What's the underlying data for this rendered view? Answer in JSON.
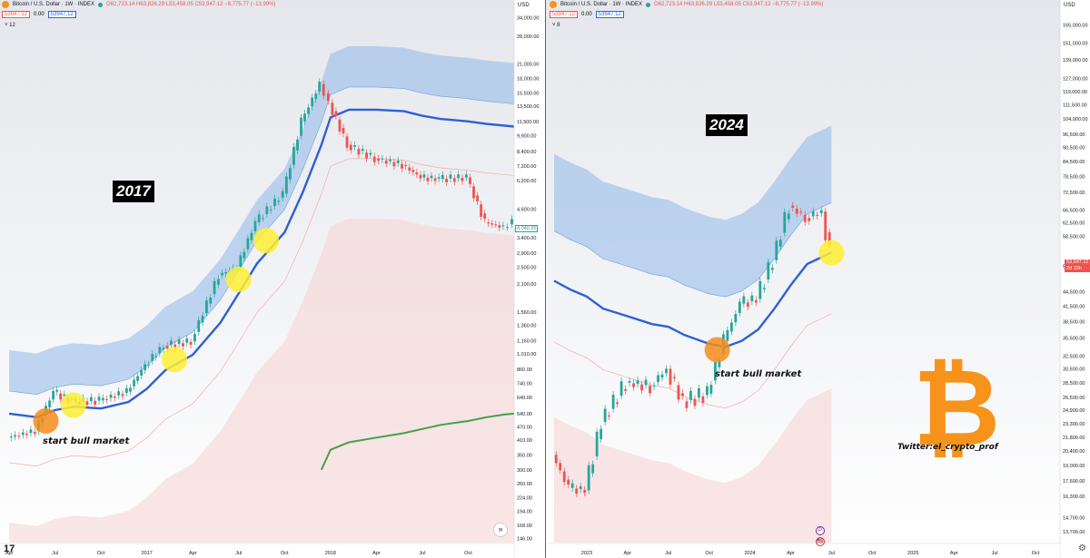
{
  "symbol_header": {
    "name": "Bitcoin / U.S. Dollar · 1W · INDEX",
    "ohlc": "O62,723.14 H63,826.29 L53,458.05 C53,947.12 −8,775.77 (−13.99%)",
    "ohlc_right": "O62,723.14 H63,826.29 L53,458.05 C53,947.12 −8,775.77 (−13.99%)",
    "sell": "53947.12",
    "spread": "0.00",
    "buy": "53947.12",
    "indicator_left": "12",
    "indicator_right": "8",
    "currency": "USD"
  },
  "labels": {
    "year_left": "2017",
    "year_right": "2024",
    "bull_left": "start bull market",
    "bull_right": "start bull market",
    "twitter": "Twitter:el_crypto_prof",
    "bitcoin_symbol": "₿",
    "last_price": "53,947.12",
    "countdown": "2d 15h",
    "prev_price_left": "4,040.95",
    "tv_logo": "17",
    "scroll_button": "»",
    "gear": "⚙",
    "badge_p": "P",
    "flag": "🇺🇸"
  },
  "colors": {
    "accent_blue": "#2962ff",
    "up_candle": "#26a69a",
    "down_candle": "#ef5350",
    "band_fill": "#90b8ea",
    "highlight_yellow": "#ffee33",
    "highlight_orange": "#f78c1a",
    "ma_green": "#43a047"
  },
  "chart_data": [
    {
      "type": "line",
      "title": "Bitcoin / U.S. Dollar · 1W · INDEX",
      "scale": "log",
      "x_ticks": [
        "Apr",
        "Jul",
        "Oct",
        "2017",
        "Apr",
        "Jul",
        "Oct",
        "2018",
        "Apr",
        "Jul",
        "Oct"
      ],
      "y_ticks": [
        "34,000.00",
        "28,000.00",
        "21,000.00",
        "18,000.00",
        "15,500.00",
        "13,500.00",
        "11,500.00",
        "9,900.00",
        "8,400.00",
        "7,200.00",
        "6,200.00",
        "4,600.00",
        "3,400.00",
        "2,900.00",
        "2,500.00",
        "2,100.00",
        "1,560.00",
        "1,360.00",
        "1,160.00",
        "1,010.00",
        "860.00",
        "740.00",
        "640.00",
        "540.00",
        "470.00",
        "410.00",
        "350.00",
        "300.00",
        "260.00",
        "224.00",
        "194.00",
        "168.00",
        "146.00"
      ],
      "ylim": [
        140,
        38000
      ],
      "price_x": [
        2016.25,
        2016.4,
        2016.5,
        2016.6,
        2016.75,
        2016.9,
        2017.0,
        2017.1,
        2017.25,
        2017.4,
        2017.5,
        2017.6,
        2017.75,
        2017.85,
        2017.95,
        2018.0,
        2018.1,
        2018.25,
        2018.4,
        2018.5,
        2018.6,
        2018.75,
        2018.85,
        2018.95,
        2019.0
      ],
      "price_y": [
        420,
        450,
        680,
        610,
        620,
        680,
        900,
        1100,
        1150,
        2300,
        2500,
        4000,
        5400,
        11500,
        17000,
        14000,
        9000,
        7800,
        7300,
        6400,
        6300,
        6400,
        4000,
        3800,
        4040
      ],
      "series": [
        {
          "name": "BTC weekly close",
          "values": [
            420,
            450,
            680,
            610,
            620,
            680,
            900,
            1100,
            1150,
            2300,
            2500,
            4000,
            5400,
            11500,
            17000,
            14000,
            9000,
            7800,
            7300,
            6400,
            6300,
            6400,
            4000,
            3800,
            4040
          ]
        },
        {
          "name": "Mid line",
          "values": [
            540,
            520,
            560,
            580,
            570,
            610,
            700,
            850,
            1000,
            1400,
            1900,
            2600,
            3600,
            5500,
            9000,
            12000,
            13000,
            13000,
            12800,
            12200,
            11800,
            11500,
            11200,
            11000,
            10900
          ]
        },
        {
          "name": "Long MA",
          "values": [
            null,
            null,
            null,
            null,
            null,
            null,
            null,
            null,
            null,
            null,
            null,
            null,
            null,
            null,
            300,
            370,
            400,
            420,
            440,
            460,
            480,
            500,
            520,
            535,
            540
          ]
        }
      ],
      "highlights": [
        {
          "x": 2016.45,
          "y": 500,
          "color": "orange"
        },
        {
          "x": 2016.6,
          "y": 590,
          "color": "yellow"
        },
        {
          "x": 2017.15,
          "y": 950,
          "color": "yellow"
        },
        {
          "x": 2017.5,
          "y": 2200,
          "color": "yellow"
        },
        {
          "x": 2017.65,
          "y": 3300,
          "color": "yellow"
        }
      ]
    },
    {
      "type": "line",
      "title": "Bitcoin / U.S. Dollar · 1W · INDEX",
      "scale": "log",
      "x_ticks": [
        "2023",
        "Apr",
        "Jul",
        "Oct",
        "2024",
        "Apr",
        "Jul",
        "Oct",
        "2025",
        "Apr",
        "Jul",
        "Oct"
      ],
      "y_ticks": [
        "165,000.00",
        "151,000.00",
        "139,000.00",
        "127,000.00",
        "119,000.00",
        "111,500.00",
        "104,000.00",
        "96,500.00",
        "90,500.00",
        "84,500.00",
        "78,500.00",
        "72,500.00",
        "66,500.00",
        "62,500.00",
        "58,500.00",
        "50,500.00",
        "44,500.00",
        "41,500.00",
        "38,500.00",
        "35,500.00",
        "32,500.00",
        "30,500.00",
        "28,500.00",
        "26,500.00",
        "24,900.00",
        "23,300.00",
        "21,800.00",
        "20,400.00",
        "19,000.00",
        "17,600.00",
        "16,300.00",
        "14,700.00",
        "13,700.00"
      ],
      "ylim": [
        13000,
        180000
      ],
      "price_x": [
        2022.8,
        2022.9,
        2023.0,
        2023.1,
        2023.25,
        2023.4,
        2023.5,
        2023.6,
        2023.75,
        2023.85,
        2023.95,
        2024.05,
        2024.15,
        2024.25,
        2024.35,
        2024.45,
        2024.5
      ],
      "price_y": [
        20000,
        17000,
        16800,
        23500,
        28500,
        28000,
        30500,
        26000,
        27000,
        35000,
        42000,
        43000,
        52000,
        68000,
        64000,
        66000,
        53947
      ],
      "series": [
        {
          "name": "BTC weekly close",
          "values": [
            20000,
            17000,
            16800,
            23500,
            28500,
            28000,
            30500,
            26000,
            27000,
            35000,
            42000,
            43000,
            52000,
            68000,
            64000,
            66000,
            53947
          ]
        },
        {
          "name": "Mid line",
          "values": [
            47000,
            45000,
            43500,
            41000,
            39500,
            38000,
            37500,
            36000,
            34500,
            34000,
            35000,
            37000,
            41000,
            46000,
            51000,
            53000,
            54000
          ]
        }
      ],
      "highlights": [
        {
          "x": 2023.8,
          "y": 33500,
          "color": "orange"
        },
        {
          "x": 2024.5,
          "y": 53900,
          "color": "yellow"
        }
      ]
    }
  ]
}
